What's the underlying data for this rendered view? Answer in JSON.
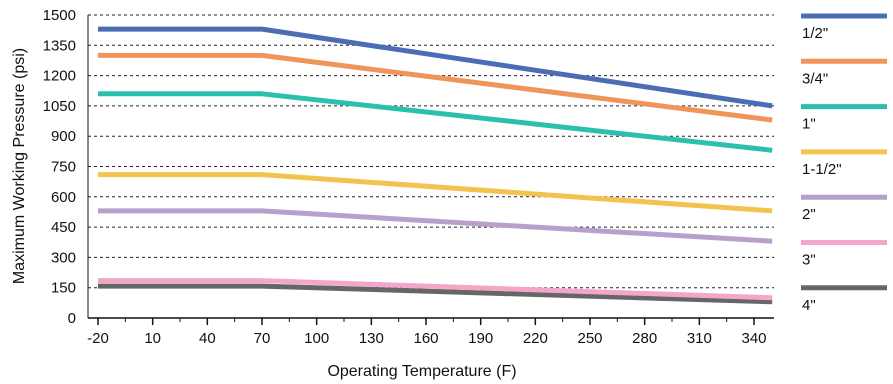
{
  "chart_data": {
    "type": "line",
    "xlabel": "Operating Temperature (F)",
    "ylabel": "Maximum Working Pressure (psi)",
    "x_ticks": [
      "-20",
      "10",
      "40",
      "70",
      "100",
      "130",
      "160",
      "190",
      "220",
      "250",
      "280",
      "310",
      "340"
    ],
    "y_ticks": [
      "0",
      "150",
      "300",
      "450",
      "600",
      "750",
      "900",
      "1050",
      "1200",
      "1350",
      "1500"
    ],
    "xlim": [
      -20,
      350
    ],
    "ylim": [
      0,
      1500
    ],
    "grid": "horizontal dashed",
    "legend_position": "right",
    "series": [
      {
        "name": "1/2\"",
        "color": "#4a6db4",
        "points": [
          [
            -20,
            1430
          ],
          [
            70,
            1430
          ],
          [
            350,
            1050
          ]
        ]
      },
      {
        "name": "3/4\"",
        "color": "#ef955a",
        "points": [
          [
            -20,
            1300
          ],
          [
            70,
            1300
          ],
          [
            350,
            980
          ]
        ]
      },
      {
        "name": "1\"",
        "color": "#2bbfb0",
        "points": [
          [
            -20,
            1110
          ],
          [
            70,
            1110
          ],
          [
            350,
            830
          ]
        ]
      },
      {
        "name": "1-1/2\"",
        "color": "#f4c24e",
        "points": [
          [
            -20,
            710
          ],
          [
            70,
            710
          ],
          [
            350,
            530
          ]
        ]
      },
      {
        "name": "2\"",
        "color": "#b8a0cc",
        "points": [
          [
            -20,
            530
          ],
          [
            70,
            530
          ],
          [
            350,
            380
          ]
        ]
      },
      {
        "name": "3\"",
        "color": "#f4a6c8",
        "points": [
          [
            -20,
            185
          ],
          [
            70,
            185
          ],
          [
            350,
            100
          ]
        ]
      },
      {
        "name": "4\"",
        "color": "#666666",
        "points": [
          [
            -20,
            158
          ],
          [
            70,
            158
          ],
          [
            350,
            80
          ]
        ]
      }
    ]
  }
}
